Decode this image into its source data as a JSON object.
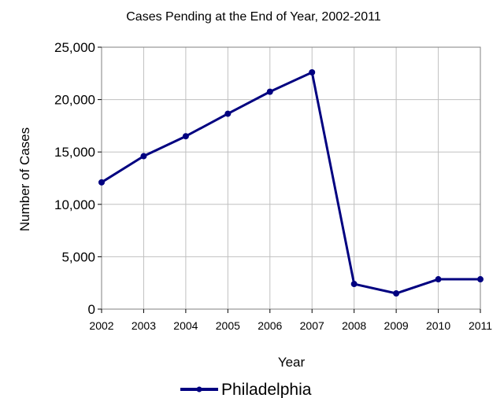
{
  "chart_data": {
    "type": "line",
    "title": "Cases Pending at the End of Year, 2002-2011",
    "xlabel": "Year",
    "ylabel": "Number of Cases",
    "categories": [
      "2002",
      "2003",
      "2004",
      "2005",
      "2006",
      "2007",
      "2008",
      "2009",
      "2010",
      "2011"
    ],
    "ylim": [
      0,
      25000
    ],
    "yticks": [
      0,
      5000,
      10000,
      15000,
      20000,
      25000
    ],
    "ytick_labels": [
      "0",
      "5,000",
      "10,000",
      "15,000",
      "20,000",
      "25,000"
    ],
    "grid": true,
    "legend_position": "bottom",
    "series": [
      {
        "name": "Philadelphia",
        "color": "#000080",
        "values": [
          12100,
          14600,
          16500,
          18650,
          20750,
          22600,
          2400,
          1500,
          2850,
          2850
        ]
      }
    ]
  }
}
